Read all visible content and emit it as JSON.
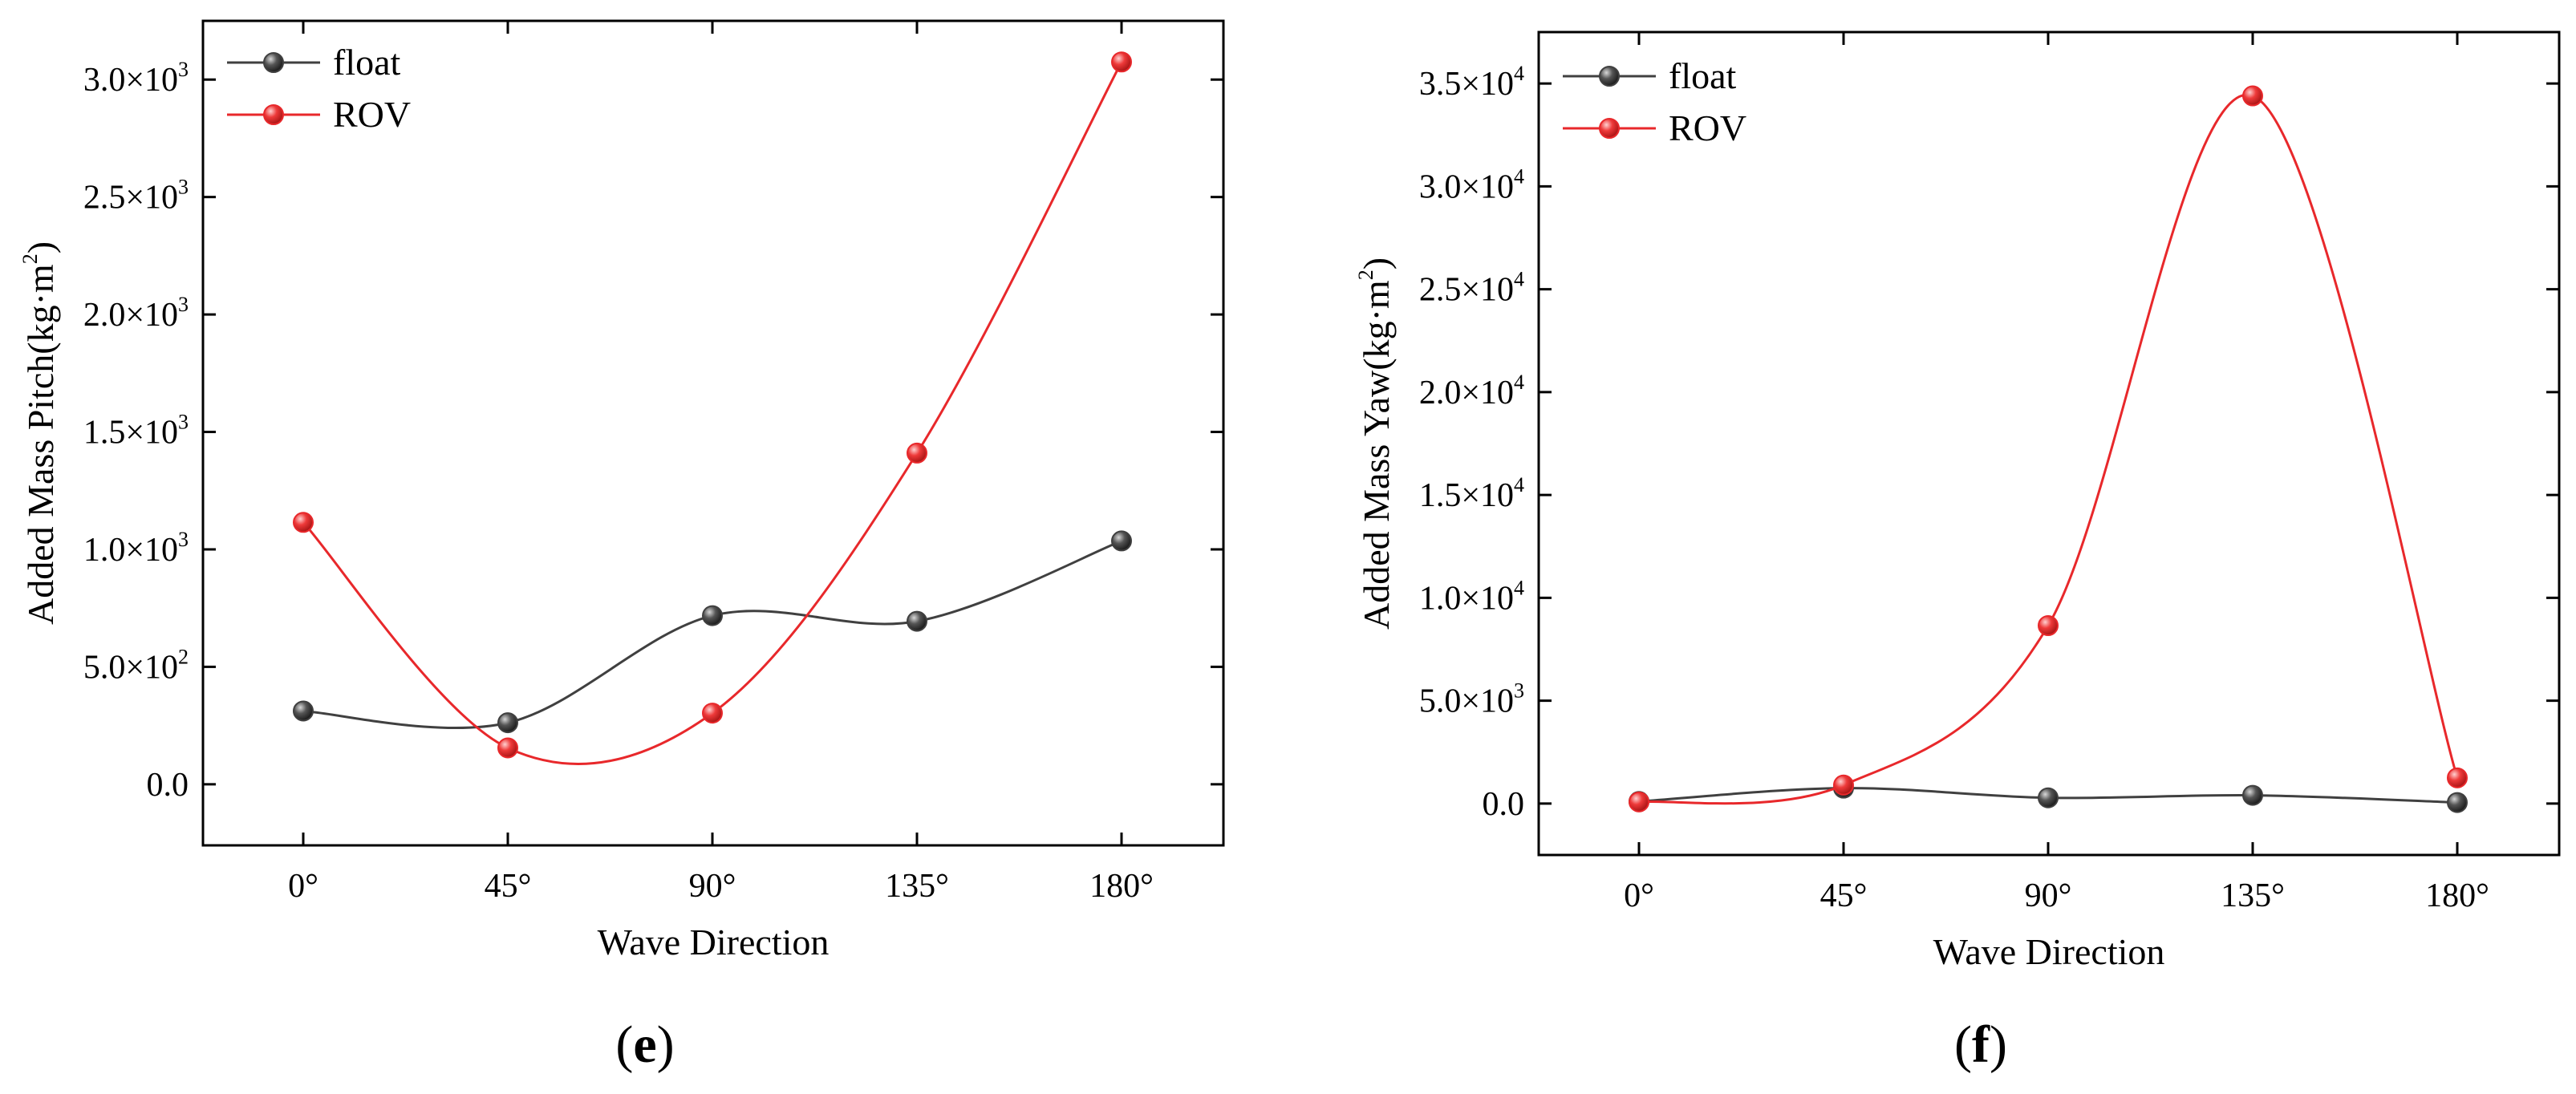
{
  "chart_data": [
    {
      "type": "line",
      "panel_label": {
        "open": "(",
        "letter": "e",
        "close": ")"
      },
      "xlabel": "Wave Direction",
      "ylabel": {
        "main": "Added Mass Pitch(kg·m",
        "exp": "2",
        "close": ")"
      },
      "categories": [
        "0°",
        "45°",
        "90°",
        "135°",
        "180°"
      ],
      "ylim": [
        -260,
        3250
      ],
      "yticks": [
        {
          "value": 0,
          "mantissa": "0.0",
          "exp": ""
        },
        {
          "value": 500,
          "mantissa": "5.0×10",
          "exp": "2"
        },
        {
          "value": 1000,
          "mantissa": "1.0×10",
          "exp": "3"
        },
        {
          "value": 1500,
          "mantissa": "1.5×10",
          "exp": "3"
        },
        {
          "value": 2000,
          "mantissa": "2.0×10",
          "exp": "3"
        },
        {
          "value": 2500,
          "mantissa": "2.5×10",
          "exp": "3"
        },
        {
          "value": 3000,
          "mantissa": "3.0×10",
          "exp": "3"
        }
      ],
      "legend_position": "top-left",
      "series": [
        {
          "name": "float",
          "color": "#404040",
          "values": [
            312,
            262,
            718,
            694,
            1036
          ]
        },
        {
          "name": "ROV",
          "color": "#e8282b",
          "values": [
            1115,
            155,
            303,
            1410,
            3075
          ]
        }
      ]
    },
    {
      "type": "line",
      "panel_label": {
        "open": "(",
        "letter": "f",
        "close": ")"
      },
      "xlabel": "Wave Direction",
      "ylabel": {
        "main": "Added Mass Yaw(kg·m",
        "exp": "2",
        "close": ")"
      },
      "categories": [
        "0°",
        "45°",
        "90°",
        "135°",
        "180°"
      ],
      "ylim": [
        -2500,
        37500
      ],
      "yticks": [
        {
          "value": 0,
          "mantissa": "0.0",
          "exp": ""
        },
        {
          "value": 5000,
          "mantissa": "5.0×10",
          "exp": "3"
        },
        {
          "value": 10000,
          "mantissa": "1.0×10",
          "exp": "4"
        },
        {
          "value": 15000,
          "mantissa": "1.5×10",
          "exp": "4"
        },
        {
          "value": 20000,
          "mantissa": "2.0×10",
          "exp": "4"
        },
        {
          "value": 25000,
          "mantissa": "2.5×10",
          "exp": "4"
        },
        {
          "value": 30000,
          "mantissa": "3.0×10",
          "exp": "4"
        },
        {
          "value": 35000,
          "mantissa": "3.5×10",
          "exp": "4"
        }
      ],
      "legend_position": "top-left",
      "series": [
        {
          "name": "float",
          "color": "#404040",
          "values": [
            100,
            750,
            280,
            400,
            50
          ]
        },
        {
          "name": "ROV",
          "color": "#e8282b",
          "values": [
            80,
            900,
            8650,
            34400,
            1250
          ]
        }
      ]
    }
  ]
}
